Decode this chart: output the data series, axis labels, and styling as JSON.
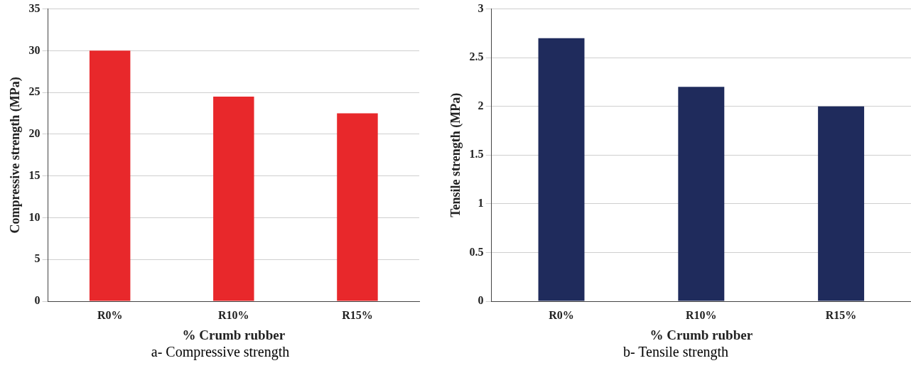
{
  "chart_data": [
    {
      "type": "bar",
      "xlabel": "% Crumb rubber",
      "ylabel": "Compressive strength (MPa)",
      "categories": [
        "R0%",
        "R10%",
        "R15%"
      ],
      "values": [
        30,
        24.5,
        22.5
      ],
      "color": "#e8282b",
      "ylim": [
        0,
        35
      ],
      "yticks": [
        0,
        5,
        10,
        15,
        20,
        25,
        30,
        35
      ],
      "grid": "y",
      "legend": false,
      "annotations": [
        "a- Compressive strength"
      ]
    },
    {
      "type": "bar",
      "xlabel": "% Crumb rubber",
      "ylabel": "Tensile strength (MPa)",
      "categories": [
        "R0%",
        "R10%",
        "R15%"
      ],
      "values": [
        2.7,
        2.2,
        2
      ],
      "color": "#1f2b5c",
      "ylim": [
        0,
        3
      ],
      "yticks": [
        0,
        0.5,
        1,
        1.5,
        2,
        2.5,
        3
      ],
      "grid": "y",
      "legend": false,
      "annotations": [
        "b- Tensile strength"
      ]
    }
  ]
}
